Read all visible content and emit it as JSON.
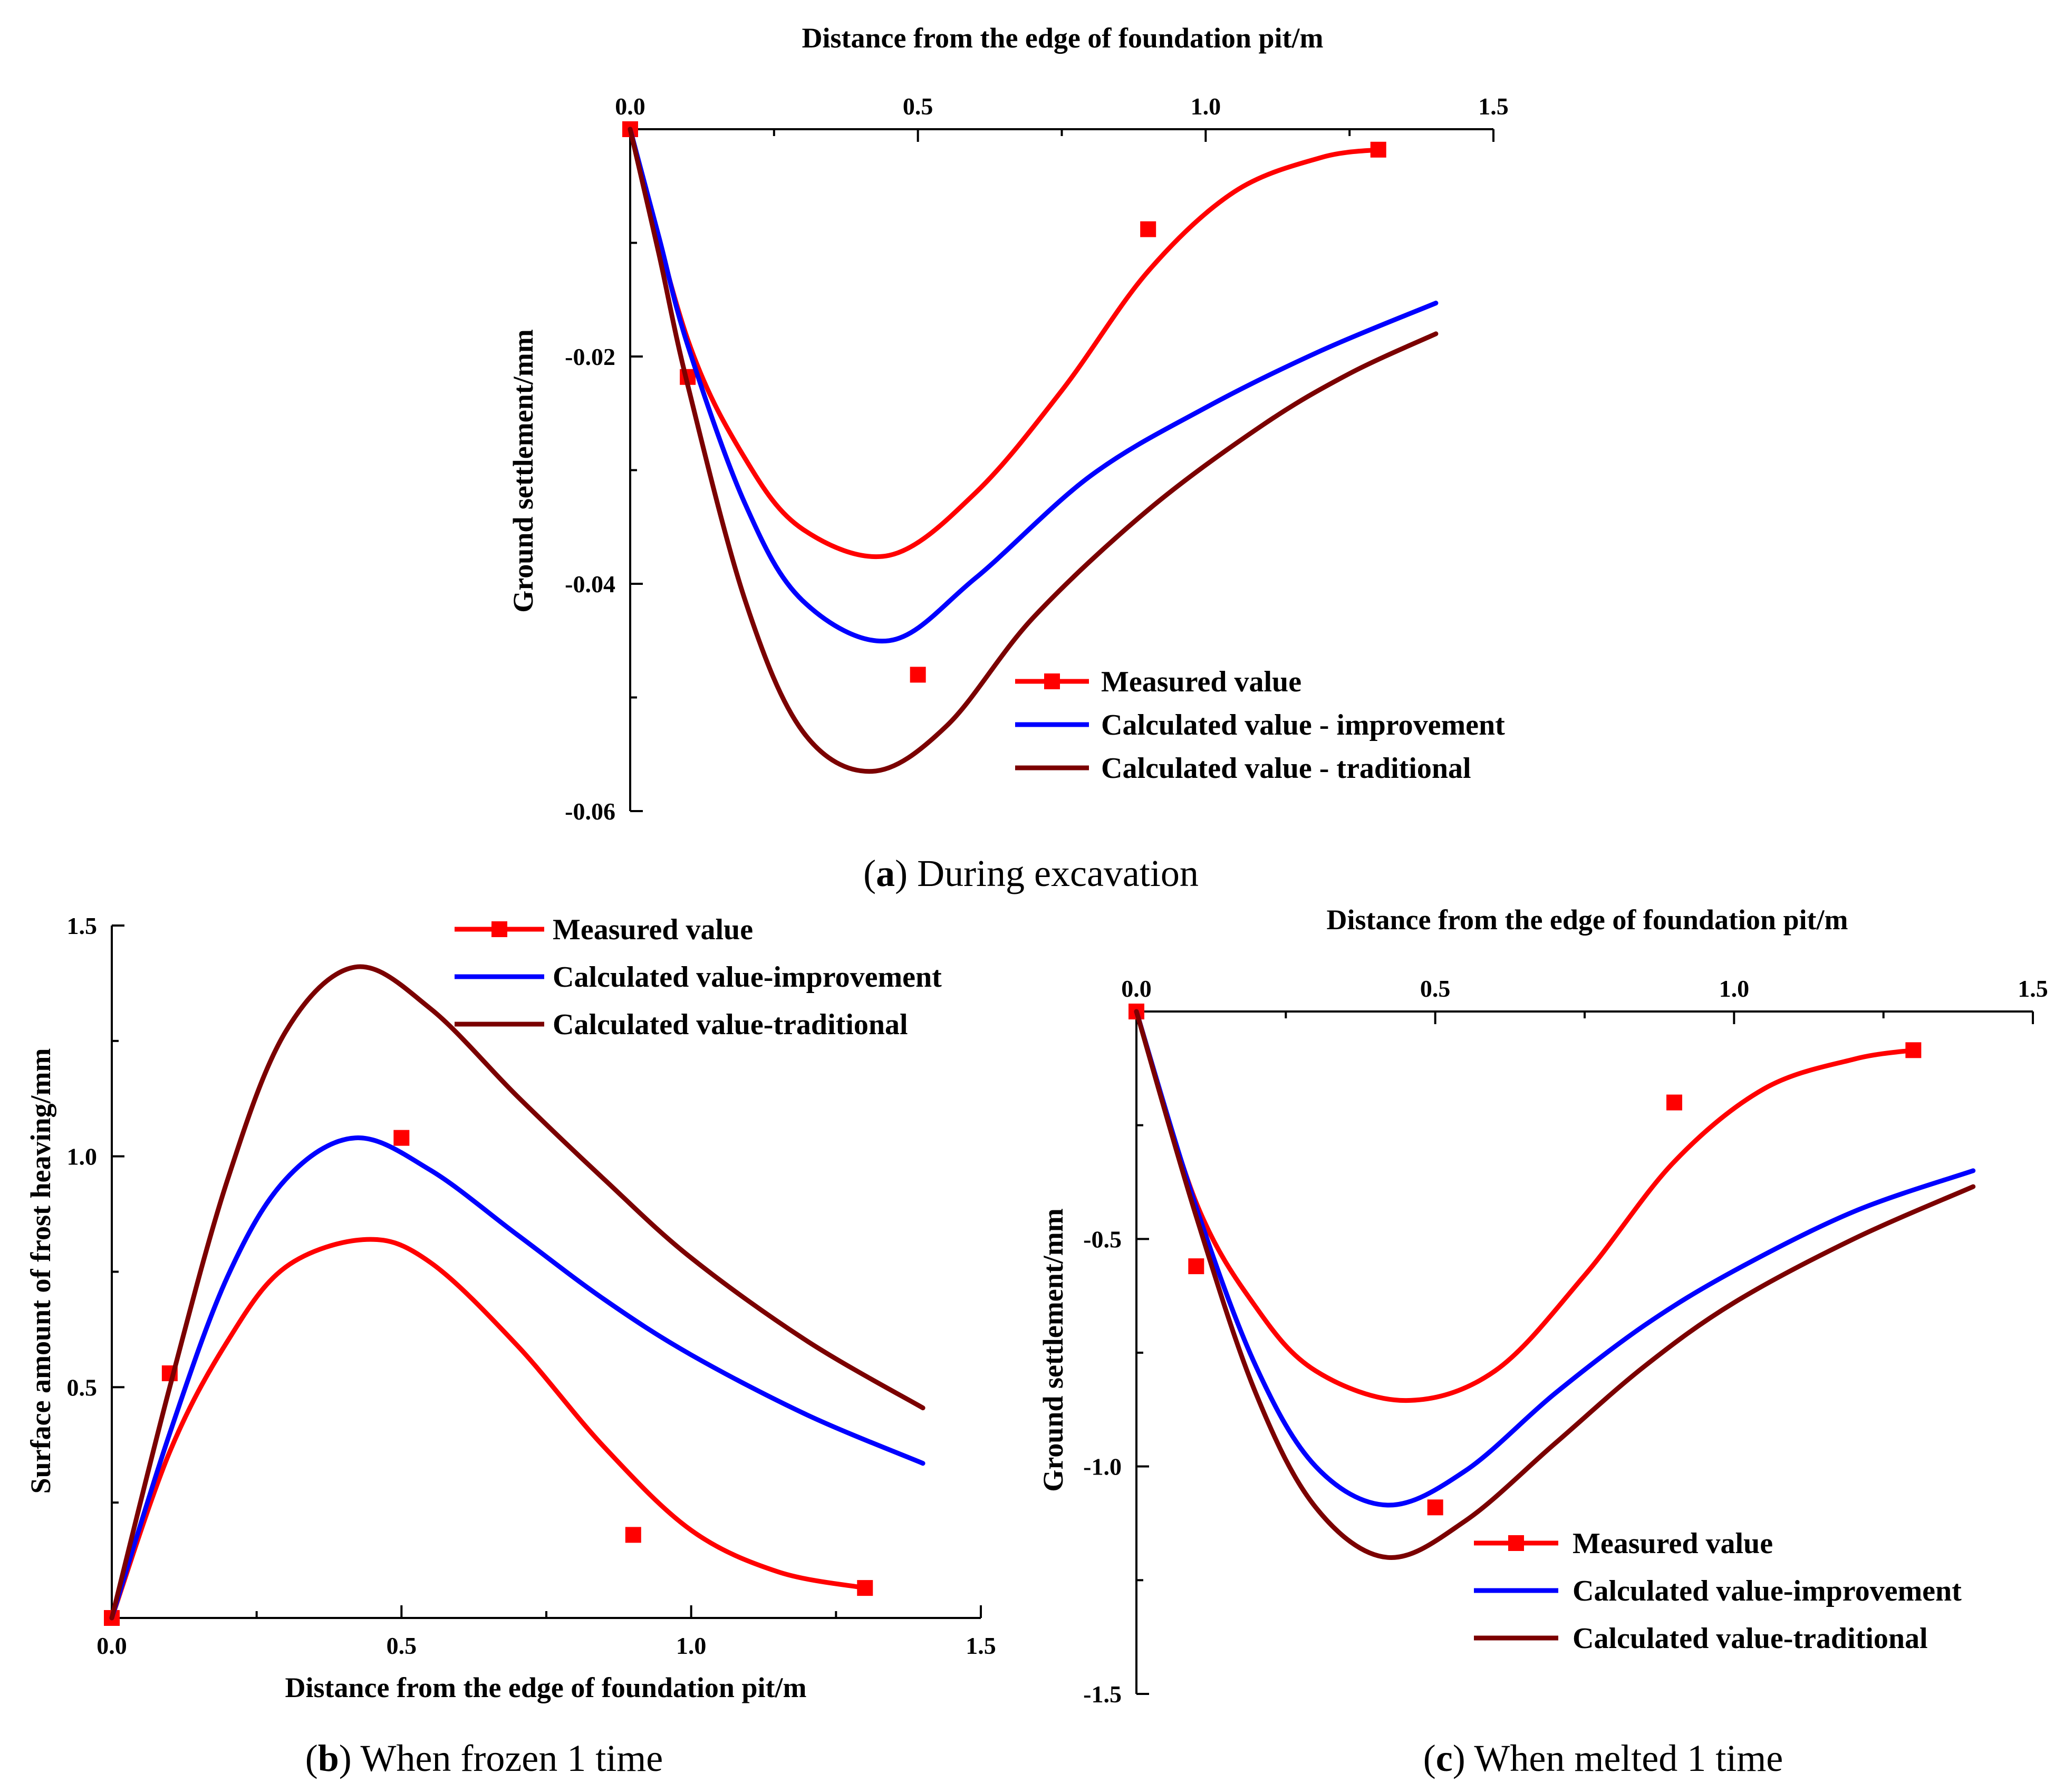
{
  "colors": {
    "measured": "#ff0000",
    "improvement": "#0000ff",
    "traditional": "#7b0000",
    "axis": "#000000"
  },
  "chart_data": [
    {
      "id": "a",
      "type": "line",
      "caption_letter": "a",
      "caption_text": "During excavation",
      "xlabel": "Distance from the edge of foundation pit/m",
      "ylabel": "Ground settlement/mm",
      "xlim": [
        0,
        1.5
      ],
      "ylim": [
        -0.06,
        0
      ],
      "xticks": [
        {
          "value": 0,
          "label": "0.0"
        },
        {
          "value": 0.5,
          "label": "0.5"
        },
        {
          "value": 1.0,
          "label": "1.0"
        },
        {
          "value": 1.5,
          "label": "1.5"
        }
      ],
      "yticks": [
        {
          "value": -0.02,
          "label": "-0.02"
        },
        {
          "value": -0.04,
          "label": "-0.04"
        },
        {
          "value": -0.06,
          "label": "-0.06"
        }
      ],
      "legend_position": "bottom-right",
      "series": [
        {
          "name": "Measured value",
          "key": "measured",
          "marker": "square",
          "points": [
            [
              0,
              0
            ],
            [
              0.1,
              -0.0218
            ],
            [
              0.5,
              -0.048
            ],
            [
              0.9,
              -0.0088
            ],
            [
              1.3,
              -0.0018
            ]
          ],
          "curve": [
            [
              0,
              0
            ],
            [
              0.1,
              -0.0185
            ],
            [
              0.2,
              -0.029
            ],
            [
              0.3,
              -0.0352
            ],
            [
              0.45,
              -0.0375
            ],
            [
              0.6,
              -0.032
            ],
            [
              0.75,
              -0.023
            ],
            [
              0.9,
              -0.0125
            ],
            [
              1.05,
              -0.0055
            ],
            [
              1.2,
              -0.0025
            ],
            [
              1.3,
              -0.0018
            ]
          ]
        },
        {
          "name": "Calculated value - improvement",
          "key": "improvement",
          "marker": "none",
          "curve": [
            [
              0,
              0
            ],
            [
              0.05,
              -0.0095
            ],
            [
              0.1,
              -0.019
            ],
            [
              0.2,
              -0.033
            ],
            [
              0.3,
              -0.0415
            ],
            [
              0.45,
              -0.045
            ],
            [
              0.6,
              -0.0395
            ],
            [
              0.8,
              -0.0305
            ],
            [
              1.0,
              -0.0245
            ],
            [
              1.2,
              -0.0195
            ],
            [
              1.4,
              -0.0153
            ]
          ]
        },
        {
          "name": "Calculated value - traditional",
          "key": "traditional",
          "marker": "none",
          "curve": [
            [
              0,
              0
            ],
            [
              0.05,
              -0.011
            ],
            [
              0.1,
              -0.0225
            ],
            [
              0.2,
              -0.0415
            ],
            [
              0.3,
              -0.053
            ],
            [
              0.42,
              -0.0565
            ],
            [
              0.55,
              -0.0525
            ],
            [
              0.7,
              -0.043
            ],
            [
              0.9,
              -0.0335
            ],
            [
              1.1,
              -0.026
            ],
            [
              1.25,
              -0.0215
            ],
            [
              1.4,
              -0.018
            ]
          ]
        }
      ]
    },
    {
      "id": "b",
      "type": "line",
      "caption_letter": "b",
      "caption_text": "When frozen 1 time",
      "xlabel": "Distance from the edge of foundation pit/m",
      "ylabel": "Surface amount of frost heaving/mm",
      "xlim": [
        0,
        1.5
      ],
      "ylim": [
        0,
        1.5
      ],
      "xticks": [
        {
          "value": 0,
          "label": "0.0"
        },
        {
          "value": 0.5,
          "label": "0.5"
        },
        {
          "value": 1.0,
          "label": "1.0"
        },
        {
          "value": 1.5,
          "label": "1.5"
        }
      ],
      "yticks": [
        {
          "value": 0.5,
          "label": "0.5"
        },
        {
          "value": 1.0,
          "label": "1.0"
        },
        {
          "value": 1.5,
          "label": "1.5"
        }
      ],
      "legend_position": "top-right",
      "series": [
        {
          "name": "Measured value",
          "key": "measured",
          "marker": "square",
          "points": [
            [
              0,
              0
            ],
            [
              0.1,
              0.53
            ],
            [
              0.5,
              1.04
            ],
            [
              0.9,
              0.18
            ],
            [
              1.3,
              0.065
            ]
          ],
          "curve": [
            [
              0,
              0
            ],
            [
              0.1,
              0.36
            ],
            [
              0.2,
              0.6
            ],
            [
              0.3,
              0.76
            ],
            [
              0.44,
              0.82
            ],
            [
              0.55,
              0.77
            ],
            [
              0.7,
              0.59
            ],
            [
              0.85,
              0.37
            ],
            [
              1.0,
              0.19
            ],
            [
              1.15,
              0.1
            ],
            [
              1.3,
              0.065
            ]
          ]
        },
        {
          "name": "Calculated value-improvement",
          "key": "improvement",
          "marker": "none",
          "curve": [
            [
              0,
              0
            ],
            [
              0.1,
              0.4
            ],
            [
              0.2,
              0.74
            ],
            [
              0.3,
              0.95
            ],
            [
              0.42,
              1.04
            ],
            [
              0.55,
              0.97
            ],
            [
              0.7,
              0.83
            ],
            [
              0.85,
              0.69
            ],
            [
              1.0,
              0.57
            ],
            [
              1.2,
              0.44
            ],
            [
              1.4,
              0.335
            ]
          ]
        },
        {
          "name": "Calculated value-traditional",
          "key": "traditional",
          "marker": "none",
          "curve": [
            [
              0,
              0
            ],
            [
              0.1,
              0.5
            ],
            [
              0.2,
              0.95
            ],
            [
              0.3,
              1.27
            ],
            [
              0.42,
              1.41
            ],
            [
              0.55,
              1.32
            ],
            [
              0.7,
              1.13
            ],
            [
              0.85,
              0.95
            ],
            [
              1.0,
              0.78
            ],
            [
              1.2,
              0.6
            ],
            [
              1.4,
              0.455
            ]
          ]
        }
      ]
    },
    {
      "id": "c",
      "type": "line",
      "caption_letter": "c",
      "caption_text": "When melted 1 time",
      "xlabel": "Distance from the edge of foundation pit/m",
      "ylabel": "Ground settlement/mm",
      "xlim": [
        0,
        1.5
      ],
      "ylim": [
        -1.5,
        0
      ],
      "xticks": [
        {
          "value": 0,
          "label": "0.0"
        },
        {
          "value": 0.5,
          "label": "0.5"
        },
        {
          "value": 1.0,
          "label": "1.0"
        },
        {
          "value": 1.5,
          "label": "1.5"
        }
      ],
      "yticks": [
        {
          "value": -0.5,
          "label": "-0.5"
        },
        {
          "value": -1.0,
          "label": "-1.0"
        },
        {
          "value": -1.5,
          "label": "-1.5"
        }
      ],
      "legend_position": "bottom-right",
      "series": [
        {
          "name": "Measured value",
          "key": "measured",
          "marker": "square",
          "points": [
            [
              0,
              0
            ],
            [
              0.1,
              -0.56
            ],
            [
              0.5,
              -1.09
            ],
            [
              0.9,
              -0.2
            ],
            [
              1.3,
              -0.085
            ]
          ],
          "curve": [
            [
              0,
              0
            ],
            [
              0.1,
              -0.42
            ],
            [
              0.2,
              -0.65
            ],
            [
              0.3,
              -0.79
            ],
            [
              0.45,
              -0.855
            ],
            [
              0.6,
              -0.79
            ],
            [
              0.75,
              -0.58
            ],
            [
              0.9,
              -0.33
            ],
            [
              1.05,
              -0.17
            ],
            [
              1.2,
              -0.105
            ],
            [
              1.3,
              -0.085
            ]
          ]
        },
        {
          "name": "Calculated value-improvement",
          "key": "improvement",
          "marker": "none",
          "curve": [
            [
              0,
              0
            ],
            [
              0.1,
              -0.43
            ],
            [
              0.2,
              -0.78
            ],
            [
              0.3,
              -1.0
            ],
            [
              0.42,
              -1.085
            ],
            [
              0.55,
              -1.01
            ],
            [
              0.7,
              -0.84
            ],
            [
              0.85,
              -0.69
            ],
            [
              1.0,
              -0.57
            ],
            [
              1.2,
              -0.44
            ],
            [
              1.4,
              -0.35
            ]
          ]
        },
        {
          "name": "Calculated value-traditional",
          "key": "traditional",
          "marker": "none",
          "curve": [
            [
              0,
              0
            ],
            [
              0.1,
              -0.45
            ],
            [
              0.2,
              -0.84
            ],
            [
              0.3,
              -1.09
            ],
            [
              0.42,
              -1.2
            ],
            [
              0.55,
              -1.12
            ],
            [
              0.7,
              -0.95
            ],
            [
              0.85,
              -0.78
            ],
            [
              1.0,
              -0.64
            ],
            [
              1.2,
              -0.5
            ],
            [
              1.4,
              -0.385
            ]
          ]
        }
      ]
    }
  ]
}
